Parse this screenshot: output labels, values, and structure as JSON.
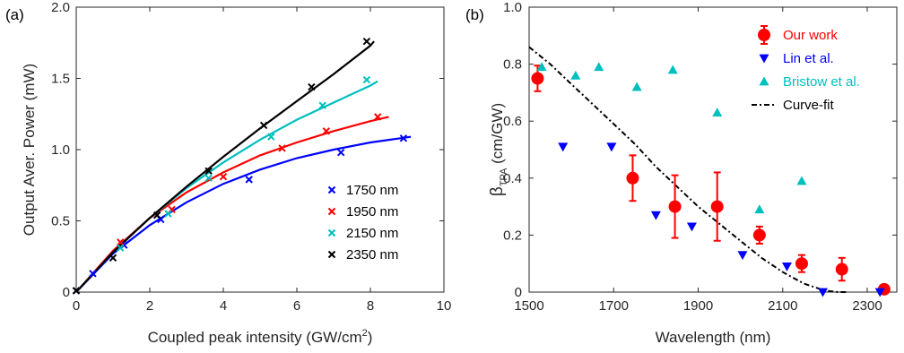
{
  "chart_data": [
    {
      "type": "scatter",
      "panel_label": "(a)",
      "xlabel": "Coupled peak intensity (GW/cm",
      "xlabel_sup": "2",
      "xlabel_end": ")",
      "ylabel": "Output Aver. Power (mW)",
      "xlim": [
        0,
        10
      ],
      "ylim": [
        0,
        2.0
      ],
      "xticks": [
        "0",
        "2",
        "4",
        "6",
        "8",
        "10"
      ],
      "yticks": [
        "0",
        "0.5",
        "1.0",
        "1.5",
        "2.0"
      ],
      "legend_position": "center-right",
      "series": [
        {
          "name": "1750 nm",
          "color": "#0000ff",
          "x": [
            0,
            0.45,
            1.3,
            2.3,
            4.7,
            7.2,
            8.9
          ],
          "y": [
            0.01,
            0.13,
            0.33,
            0.51,
            0.79,
            0.98,
            1.08
          ],
          "fit_x": [
            0,
            1,
            2,
            3,
            4,
            5,
            6,
            7,
            8,
            9.1
          ],
          "fit_y": [
            0,
            0.27,
            0.47,
            0.63,
            0.76,
            0.86,
            0.94,
            1.0,
            1.05,
            1.09
          ]
        },
        {
          "name": "1950 nm",
          "color": "#ff0000",
          "x": [
            0,
            1.2,
            2.6,
            4.0,
            5.6,
            6.8,
            8.2
          ],
          "y": [
            0.01,
            0.35,
            0.58,
            0.81,
            1.01,
            1.13,
            1.23
          ],
          "fit_x": [
            0,
            1,
            2,
            3,
            4,
            5,
            6,
            7,
            8,
            8.5
          ],
          "fit_y": [
            0,
            0.29,
            0.52,
            0.7,
            0.84,
            0.96,
            1.05,
            1.13,
            1.2,
            1.23
          ]
        },
        {
          "name": "2150 nm",
          "color": "#00bfbf",
          "x": [
            0,
            1.2,
            2.5,
            3.6,
            5.3,
            6.7,
            7.9
          ],
          "y": [
            0.01,
            0.31,
            0.55,
            0.8,
            1.09,
            1.31,
            1.49
          ],
          "fit_x": [
            0,
            1,
            2,
            3,
            4,
            5,
            6,
            7,
            8,
            8.2
          ],
          "fit_y": [
            0,
            0.28,
            0.52,
            0.73,
            0.91,
            1.07,
            1.21,
            1.33,
            1.45,
            1.48
          ]
        },
        {
          "name": "2350 nm",
          "color": "#000000",
          "x": [
            0,
            1.0,
            2.2,
            3.6,
            5.1,
            6.4,
            7.9
          ],
          "y": [
            0.01,
            0.24,
            0.54,
            0.85,
            1.17,
            1.44,
            1.76
          ],
          "fit_x": [
            0,
            1,
            2,
            3,
            4,
            5,
            6,
            7,
            8,
            8.1
          ],
          "fit_y": [
            0,
            0.28,
            0.52,
            0.74,
            0.95,
            1.15,
            1.34,
            1.53,
            1.73,
            1.76
          ]
        }
      ]
    },
    {
      "type": "scatter",
      "panel_label": "(b)",
      "xlabel": "Wavelength (nm)",
      "ylabel_main": "β",
      "ylabel_sub": "TPA",
      "ylabel_end": " (cm/GW)",
      "xlim": [
        1500,
        2370
      ],
      "ylim": [
        0,
        1.0
      ],
      "xticks": [
        "1500",
        "1700",
        "1900",
        "2100",
        "2300"
      ],
      "yticks": [
        "0",
        "0.2",
        "0.4",
        "0.6",
        "0.8",
        "1.0"
      ],
      "legend_position": "top-right",
      "series": [
        {
          "name": "Our work",
          "color": "#ff0000",
          "marker": "circle-errorbar",
          "x": [
            1520,
            1745,
            1845,
            1945,
            2045,
            2145,
            2240,
            2340
          ],
          "y": [
            0.75,
            0.4,
            0.3,
            0.3,
            0.2,
            0.1,
            0.08,
            0.01
          ],
          "err": [
            0.045,
            0.08,
            0.11,
            0.12,
            0.03,
            0.03,
            0.04,
            0.015
          ]
        },
        {
          "name": "Lin et al.",
          "color": "#0000ff",
          "marker": "triangle-down",
          "x": [
            1580,
            1695,
            1800,
            1885,
            2005,
            2110,
            2195,
            2330
          ],
          "y": [
            0.51,
            0.51,
            0.27,
            0.23,
            0.13,
            0.09,
            0.0,
            0.0
          ]
        },
        {
          "name": "Bristow et al.",
          "color": "#00bfbf",
          "marker": "triangle-up",
          "x": [
            1530,
            1610,
            1665,
            1755,
            1840,
            1945,
            2045,
            2145
          ],
          "y": [
            0.79,
            0.76,
            0.79,
            0.72,
            0.78,
            0.63,
            0.29,
            0.39
          ]
        },
        {
          "name": "Curve-fit",
          "color": "#000000",
          "marker": "dash-dot-line",
          "x": [
            1500,
            1550,
            1600,
            1650,
            1700,
            1750,
            1800,
            1850,
            1900,
            1950,
            2000,
            2050,
            2100,
            2150,
            2200,
            2230,
            2250
          ],
          "y": [
            0.86,
            0.8,
            0.73,
            0.66,
            0.59,
            0.52,
            0.44,
            0.37,
            0.3,
            0.24,
            0.18,
            0.12,
            0.07,
            0.03,
            0.005,
            0.0,
            0.0
          ]
        }
      ]
    }
  ]
}
